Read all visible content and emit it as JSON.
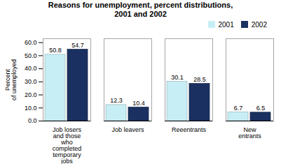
{
  "chart_data": {
    "type": "bar",
    "title": "Reasons for unemployment, percent distributions,\n2001 and 2002",
    "categories": [
      "Job losers\nand those\nwho\ncompleted\ntemporary\njobs",
      "Job leavers",
      "Reeentrants",
      "New\nentrants"
    ],
    "series": [
      {
        "name": "2001",
        "color": "#c8eef5",
        "values": [
          50.8,
          12.3,
          30.1,
          6.7
        ]
      },
      {
        "name": "2002",
        "color": "#1a3060",
        "values": [
          54.7,
          10.4,
          28.5,
          6.5
        ]
      }
    ],
    "ylabel": "Percent\nof unemployed",
    "ylim": [
      0,
      63
    ],
    "yticks": [
      {
        "value": 0,
        "label": "0.0"
      },
      {
        "value": 10,
        "label": "10.0"
      },
      {
        "value": 20,
        "label": "20.0"
      },
      {
        "value": 30,
        "label": "30.0"
      },
      {
        "value": 40,
        "label": "40.0"
      },
      {
        "value": 50,
        "label": "50.0"
      },
      {
        "value": 60,
        "label": "60.0"
      }
    ],
    "legend": "upper right",
    "data_labels": true,
    "grid": false
  }
}
